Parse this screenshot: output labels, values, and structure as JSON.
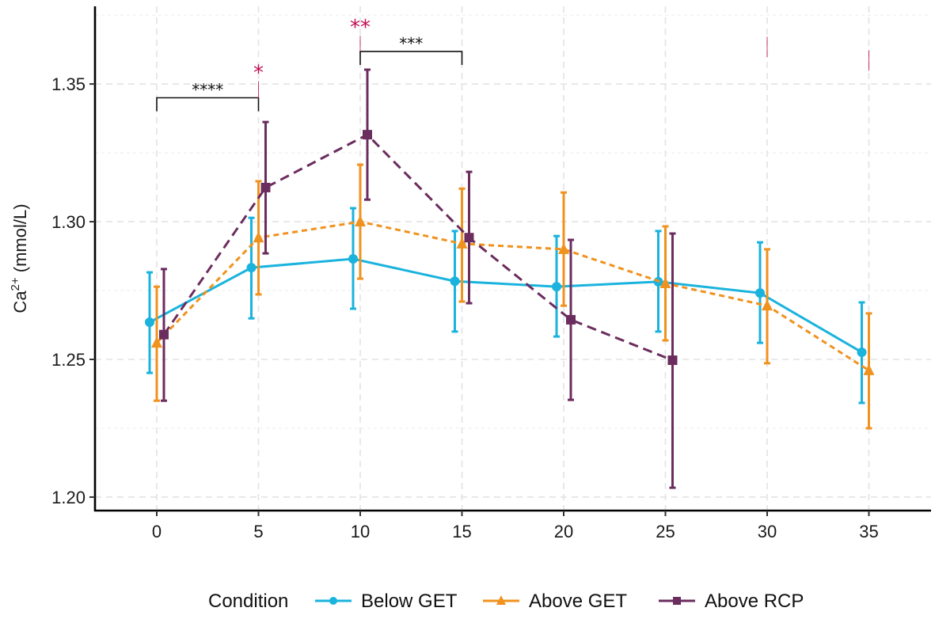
{
  "chart_data": {
    "type": "line",
    "title": "",
    "xlabel": "",
    "ylabel": "Ca2+ (mmol/L)",
    "ylabel_parts": {
      "base": "Ca",
      "superscript": "2+",
      "unit": " (mmol/L)"
    },
    "xlim": [
      -3,
      38
    ],
    "ylim": [
      1.1951,
      1.3782
    ],
    "x_ticks": [
      0,
      5,
      10,
      15,
      20,
      25,
      30,
      35
    ],
    "x_tick_labels": [
      "0",
      "5",
      "10",
      "15",
      "20",
      "25",
      "30",
      "35"
    ],
    "y_ticks": [
      1.2,
      1.25,
      1.3,
      1.35
    ],
    "y_tick_labels": [
      "1.20",
      "1.25",
      "1.30",
      "1.35"
    ],
    "y_minor_ticks": [
      1.225,
      1.275,
      1.325,
      1.375
    ],
    "grid": true,
    "legend": {
      "title": "Condition",
      "position": "bottom",
      "entries": [
        "Below GET",
        "Above GET",
        "Above RCP"
      ]
    },
    "series": [
      {
        "name": "Below GET",
        "color": "#1AB3DD",
        "marker": "circle",
        "linestyle": "solid",
        "dodge": -0.35,
        "x": [
          0,
          5,
          10,
          15,
          20,
          25,
          30,
          35
        ],
        "y": [
          1.2635,
          1.2833,
          1.2865,
          1.2784,
          1.2764,
          1.2782,
          1.2741,
          1.2526
        ],
        "err_low": [
          1.2451,
          1.2649,
          1.2684,
          1.2601,
          1.2583,
          1.2601,
          1.256,
          1.2342
        ],
        "err_high": [
          1.2816,
          1.3014,
          1.3049,
          1.2966,
          1.2948,
          1.2966,
          1.2925,
          1.2707
        ]
      },
      {
        "name": "Above GET",
        "color": "#F0921E",
        "marker": "triangle",
        "linestyle": "dotted",
        "dodge": 0.0,
        "x": [
          0,
          5,
          10,
          15,
          20,
          25,
          30,
          35
        ],
        "y": [
          1.256,
          1.2942,
          1.3,
          1.292,
          1.29,
          1.2776,
          1.2695,
          1.246
        ],
        "err_low": [
          1.235,
          1.2736,
          1.2793,
          1.271,
          1.2695,
          1.2569,
          1.2486,
          1.225
        ],
        "err_high": [
          1.2764,
          1.3147,
          1.3207,
          1.312,
          1.3106,
          1.2983,
          1.29,
          1.2667
        ]
      },
      {
        "name": "Above RCP",
        "color": "#6B2C5E",
        "marker": "square",
        "linestyle": "dashed",
        "dodge": 0.35,
        "x": [
          0,
          5,
          10,
          15,
          20,
          25
        ],
        "y": [
          1.259,
          1.3124,
          1.3316,
          1.2942,
          1.2644,
          1.2497
        ],
        "err_low": [
          1.235,
          1.2885,
          1.308,
          1.2704,
          1.2353,
          1.2034
        ],
        "err_high": [
          1.2828,
          1.3362,
          1.3552,
          1.3181,
          1.2934,
          1.2957
        ]
      }
    ],
    "brackets": [
      {
        "x1": 0,
        "x2": 5,
        "y": 1.345,
        "label": "****"
      },
      {
        "x1": 10,
        "x2": 15,
        "y": 1.3618,
        "label": "***"
      }
    ],
    "point_annotations": {
      "color": "#C00F52",
      "items": [
        {
          "x": 5,
          "label": "*",
          "y_low": 1.3446,
          "y_high": 1.351
        },
        {
          "x": 10,
          "label": "**",
          "y_low": 1.3618,
          "y_high": 1.3675
        },
        {
          "x": 30,
          "label": "",
          "y_low": 1.3597,
          "y_high": 1.3672
        },
        {
          "x": 35,
          "label": "",
          "y_low": 1.3548,
          "y_high": 1.3623
        }
      ]
    }
  }
}
